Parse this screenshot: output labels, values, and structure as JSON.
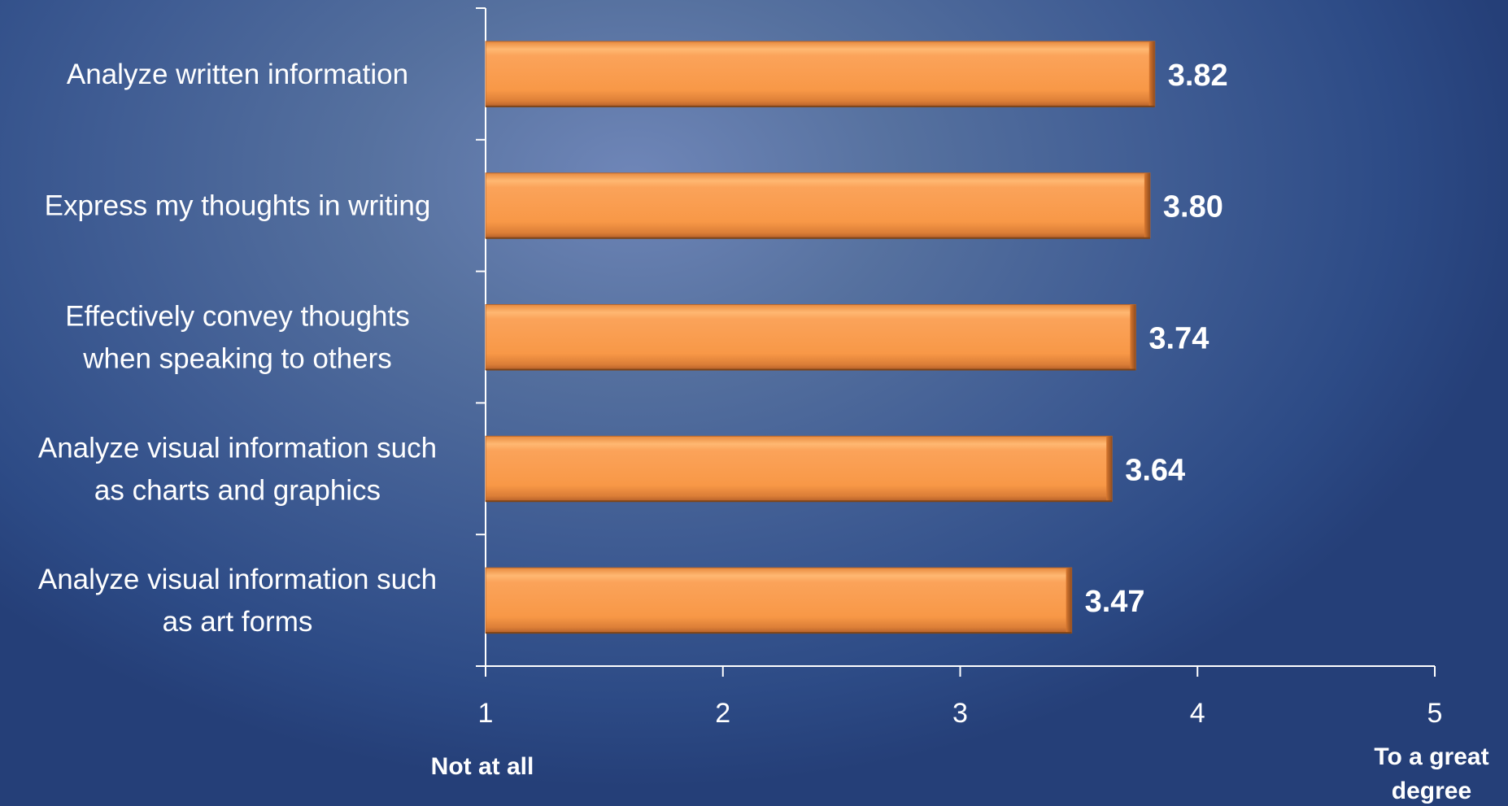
{
  "chart_data": {
    "type": "bar",
    "orientation": "horizontal",
    "categories": [
      [
        "Analyze written information"
      ],
      [
        "Express my thoughts in writing"
      ],
      [
        "Effectively convey thoughts",
        "when speaking to others"
      ],
      [
        "Analyze visual information such",
        "as charts and graphics"
      ],
      [
        "Analyze visual information such",
        "as art forms"
      ]
    ],
    "values": [
      3.82,
      3.8,
      3.74,
      3.64,
      3.47
    ],
    "value_labels": [
      "3.82",
      "3.80",
      "3.74",
      "3.64",
      "3.47"
    ],
    "xlim": [
      1,
      5
    ],
    "x_ticks": [
      1,
      2,
      3,
      4,
      5
    ],
    "x_tick_labels": [
      "1",
      "2",
      "3",
      "4",
      "5"
    ],
    "x_end_labels": {
      "low": [
        "Not at all"
      ],
      "high": [
        "To a great",
        "degree"
      ]
    },
    "grid": false,
    "legend": "none",
    "bar_color": "#f99b4a",
    "bar_shade_color": "#c4692a",
    "text_color": "#ffffff"
  }
}
